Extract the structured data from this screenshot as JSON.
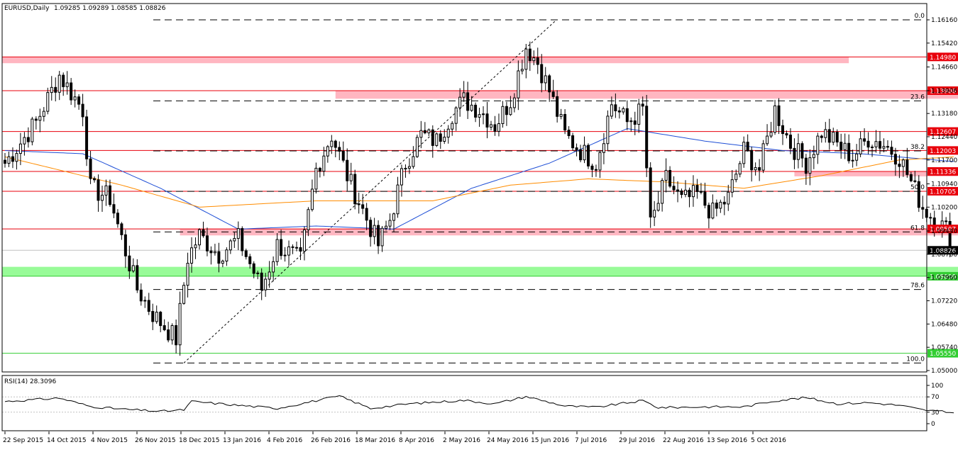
{
  "header": {
    "symbol": "EURUSD,Daily",
    "ohlc": "1.09285 1.09289 1.08585 1.08826"
  },
  "rsi_header": "RSI(14) 28.3096",
  "colors": {
    "bull": "#ffffff",
    "bear": "#000000",
    "resistance_line": "#e8000b",
    "resistance_zone": "#ffb6c1",
    "support_zone": "#98fb98",
    "support_line": "#32cd32",
    "ma_fast": "#1f4fd6",
    "ma_slow": "#ff8c00",
    "last_price_tag": "#000000",
    "fib_line": "#000000"
  },
  "chart_data": [
    {
      "type": "candlestick",
      "symbol": "EURUSD",
      "timeframe": "Daily",
      "ylim": [
        1.05,
        1.1655
      ],
      "yticks": [
        "1.16160",
        "1.15420",
        "1.14660",
        "1.13906",
        "1.13180",
        "1.12440",
        "1.11700",
        "1.10940",
        "1.10200",
        "1.09440",
        "1.08700",
        "1.07960",
        "1.07220",
        "1.06480",
        "1.05740",
        "1.05000"
      ],
      "xtick_labels": [
        "22 Sep 2015",
        "14 Oct 2015",
        "4 Nov 2015",
        "26 Nov 2015",
        "18 Dec 2015",
        "13 Jan 2016",
        "4 Feb 2016",
        "26 Feb 2016",
        "18 Mar 2016",
        "8 Apr 2016",
        "2 May 2016",
        "24 May 2016",
        "15 Jun 2016",
        "7 Jul 2016",
        "29 Jul 2016",
        "22 Aug 2016",
        "13 Sep 2016",
        "5 Oct 2016"
      ],
      "last_price": {
        "label": "1.08826",
        "value": 1.08826
      },
      "anchors": [
        {
          "i": 0,
          "v": 1.116
        },
        {
          "i": 8,
          "v": 1.129
        },
        {
          "i": 14,
          "v": 1.144
        },
        {
          "i": 20,
          "v": 1.133
        },
        {
          "i": 22,
          "v": 1.108
        },
        {
          "i": 27,
          "v": 1.105
        },
        {
          "i": 30,
          "v": 1.092
        },
        {
          "i": 34,
          "v": 1.076
        },
        {
          "i": 38,
          "v": 1.068
        },
        {
          "i": 44,
          "v": 1.06
        },
        {
          "i": 47,
          "v": 1.086
        },
        {
          "i": 50,
          "v": 1.093
        },
        {
          "i": 55,
          "v": 1.087
        },
        {
          "i": 60,
          "v": 1.092
        },
        {
          "i": 66,
          "v": 1.076
        },
        {
          "i": 70,
          "v": 1.09
        },
        {
          "i": 76,
          "v": 1.085
        },
        {
          "i": 80,
          "v": 1.114
        },
        {
          "i": 84,
          "v": 1.125
        },
        {
          "i": 88,
          "v": 1.112
        },
        {
          "i": 92,
          "v": 1.101
        },
        {
          "i": 96,
          "v": 1.09
        },
        {
          "i": 99,
          "v": 1.098
        },
        {
          "i": 103,
          "v": 1.116
        },
        {
          "i": 107,
          "v": 1.125
        },
        {
          "i": 111,
          "v": 1.123
        },
        {
          "i": 115,
          "v": 1.132
        },
        {
          "i": 118,
          "v": 1.136
        },
        {
          "i": 122,
          "v": 1.133
        },
        {
          "i": 126,
          "v": 1.128
        },
        {
          "i": 130,
          "v": 1.136
        },
        {
          "i": 134,
          "v": 1.153
        },
        {
          "i": 137,
          "v": 1.148
        },
        {
          "i": 140,
          "v": 1.139
        },
        {
          "i": 144,
          "v": 1.125
        },
        {
          "i": 148,
          "v": 1.12
        },
        {
          "i": 152,
          "v": 1.116
        },
        {
          "i": 156,
          "v": 1.135
        },
        {
          "i": 160,
          "v": 1.129
        },
        {
          "i": 164,
          "v": 1.133
        },
        {
          "i": 166,
          "v": 1.096
        },
        {
          "i": 170,
          "v": 1.111
        },
        {
          "i": 174,
          "v": 1.104
        },
        {
          "i": 178,
          "v": 1.106
        },
        {
          "i": 182,
          "v": 1.1
        },
        {
          "i": 186,
          "v": 1.105
        },
        {
          "i": 190,
          "v": 1.12
        },
        {
          "i": 194,
          "v": 1.114
        },
        {
          "i": 198,
          "v": 1.133
        },
        {
          "i": 202,
          "v": 1.122
        },
        {
          "i": 206,
          "v": 1.116
        },
        {
          "i": 210,
          "v": 1.126
        },
        {
          "i": 214,
          "v": 1.122
        },
        {
          "i": 218,
          "v": 1.118
        },
        {
          "i": 222,
          "v": 1.124
        },
        {
          "i": 226,
          "v": 1.122
        },
        {
          "i": 230,
          "v": 1.118
        },
        {
          "i": 233,
          "v": 1.11
        },
        {
          "i": 236,
          "v": 1.102
        },
        {
          "i": 239,
          "v": 1.098
        },
        {
          "i": 242,
          "v": 1.095
        },
        {
          "i": 244,
          "v": 1.0883
        }
      ],
      "ma_fast": [
        {
          "i": 0,
          "v": 1.12
        },
        {
          "i": 20,
          "v": 1.119
        },
        {
          "i": 40,
          "v": 1.108
        },
        {
          "i": 60,
          "v": 1.095
        },
        {
          "i": 80,
          "v": 1.096
        },
        {
          "i": 100,
          "v": 1.095
        },
        {
          "i": 120,
          "v": 1.108
        },
        {
          "i": 140,
          "v": 1.116
        },
        {
          "i": 160,
          "v": 1.127
        },
        {
          "i": 180,
          "v": 1.123
        },
        {
          "i": 200,
          "v": 1.12
        },
        {
          "i": 220,
          "v": 1.119
        },
        {
          "i": 244,
          "v": 1.1165
        }
      ],
      "ma_slow": [
        {
          "i": 0,
          "v": 1.118
        },
        {
          "i": 30,
          "v": 1.109
        },
        {
          "i": 50,
          "v": 1.102
        },
        {
          "i": 80,
          "v": 1.104
        },
        {
          "i": 110,
          "v": 1.104
        },
        {
          "i": 130,
          "v": 1.109
        },
        {
          "i": 150,
          "v": 1.111
        },
        {
          "i": 170,
          "v": 1.11
        },
        {
          "i": 190,
          "v": 1.108
        },
        {
          "i": 210,
          "v": 1.112
        },
        {
          "i": 230,
          "v": 1.117
        },
        {
          "i": 244,
          "v": 1.118
        }
      ],
      "levels": [
        {
          "label": "1.14980",
          "value": 1.1498,
          "kind": "resistance",
          "zone": [
            1.1478,
            1.1498
          ],
          "zone_end_i": 217
        },
        {
          "label": "1.13906",
          "value": 1.13906,
          "kind": "resistance",
          "zone": [
            1.1365,
            1.13906
          ],
          "zone_start_i": 85,
          "zone_end_i": 246
        },
        {
          "label": "1.12607",
          "value": 1.12607,
          "kind": "resistance"
        },
        {
          "label": "1.12003",
          "value": 1.12003,
          "kind": "resistance"
        },
        {
          "label": "1.11336",
          "value": 1.11336,
          "kind": "resistance",
          "zone": [
            1.1118,
            1.11336
          ],
          "zone_start_i": 203,
          "zone_end_i": 245
        },
        {
          "label": "1.10705",
          "value": 1.10705,
          "kind": "resistance"
        },
        {
          "label": "1.09507",
          "value": 1.09507,
          "kind": "resistance",
          "zone": [
            1.093,
            1.09507
          ],
          "zone_start_i": 45,
          "zone_end_i": 255
        },
        {
          "label": "1.08000",
          "value": 1.08,
          "kind": "support",
          "zone": [
            1.08,
            1.083
          ],
          "zone_end_i": 255
        },
        {
          "label": "1.05550",
          "value": 1.0555,
          "kind": "support"
        }
      ],
      "fibonacci": {
        "high": {
          "value": 1.1616,
          "i": 140
        },
        "low": {
          "value": 1.0524,
          "i": 46
        },
        "levels": [
          {
            "label": "0.0",
            "value": 1.1616
          },
          {
            "label": "23.6",
            "value": 1.1358
          },
          {
            "label": "38.2",
            "value": 1.1199
          },
          {
            "label": "50.0",
            "value": 1.107
          },
          {
            "label": "61.8",
            "value": 1.0941
          },
          {
            "label": "78.6",
            "value": 1.0758
          },
          {
            "label": "100.0",
            "value": 1.0524
          }
        ]
      }
    },
    {
      "type": "line",
      "name": "RSI(14)",
      "value_label": "28.3096",
      "ylim": [
        0,
        100
      ],
      "yticks": [
        "100",
        "70",
        "30",
        "0"
      ],
      "levels": [
        70,
        30
      ],
      "anchors": [
        {
          "i": 0,
          "v": 58
        },
        {
          "i": 14,
          "v": 67
        },
        {
          "i": 22,
          "v": 45
        },
        {
          "i": 30,
          "v": 38
        },
        {
          "i": 40,
          "v": 32
        },
        {
          "i": 46,
          "v": 36
        },
        {
          "i": 48,
          "v": 58
        },
        {
          "i": 60,
          "v": 48
        },
        {
          "i": 70,
          "v": 40
        },
        {
          "i": 80,
          "v": 60
        },
        {
          "i": 86,
          "v": 72
        },
        {
          "i": 94,
          "v": 40
        },
        {
          "i": 104,
          "v": 52
        },
        {
          "i": 118,
          "v": 61
        },
        {
          "i": 126,
          "v": 52
        },
        {
          "i": 134,
          "v": 71
        },
        {
          "i": 144,
          "v": 46
        },
        {
          "i": 152,
          "v": 43
        },
        {
          "i": 164,
          "v": 60
        },
        {
          "i": 168,
          "v": 42
        },
        {
          "i": 180,
          "v": 44
        },
        {
          "i": 190,
          "v": 44
        },
        {
          "i": 198,
          "v": 60
        },
        {
          "i": 206,
          "v": 68
        },
        {
          "i": 214,
          "v": 52
        },
        {
          "i": 222,
          "v": 55
        },
        {
          "i": 230,
          "v": 48
        },
        {
          "i": 236,
          "v": 36
        },
        {
          "i": 244,
          "v": 28.3
        }
      ]
    }
  ]
}
